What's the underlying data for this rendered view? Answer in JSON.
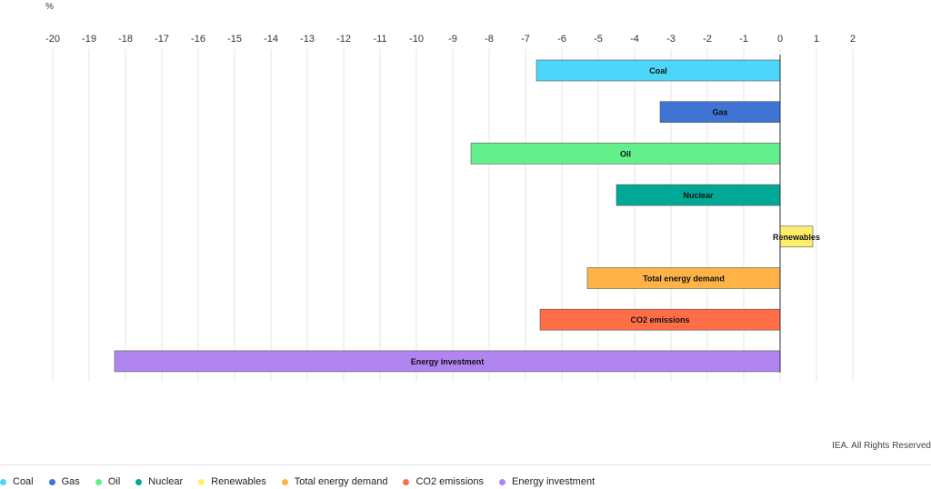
{
  "chart_data": {
    "type": "bar",
    "orientation": "horizontal",
    "unit_label": "%",
    "xlim": [
      -20,
      2
    ],
    "x_ticks": [
      "-20",
      "-19",
      "-18",
      "-17",
      "-16",
      "-15",
      "-14",
      "-13",
      "-12",
      "-11",
      "-10",
      "-9",
      "-8",
      "-7",
      "-6",
      "-5",
      "-4",
      "-3",
      "-2",
      "-1",
      "0",
      "1",
      "2"
    ],
    "grid": true,
    "legend_position": "bottom",
    "categories": [
      "Coal",
      "Gas",
      "Oil",
      "Nuclear",
      "Renewables",
      "Total energy demand",
      "CO2 emissions",
      "Energy investment"
    ],
    "values": [
      -6.7,
      -3.3,
      -8.5,
      -4.5,
      0.9,
      -5.3,
      -6.6,
      -18.3
    ],
    "colors": [
      "#4dd5fa",
      "#3f73d4",
      "#63f08c",
      "#00a896",
      "#ffee6a",
      "#ffb347",
      "#ff6e47",
      "#b085f0"
    ]
  },
  "credit": "IEA. All Rights Reserved",
  "legend": [
    {
      "label": "Coal",
      "color": "#4dd5fa"
    },
    {
      "label": "Gas",
      "color": "#3f73d4"
    },
    {
      "label": "Oil",
      "color": "#63f08c"
    },
    {
      "label": "Nuclear",
      "color": "#00a896"
    },
    {
      "label": "Renewables",
      "color": "#ffee6a"
    },
    {
      "label": "Total energy demand",
      "color": "#ffb347"
    },
    {
      "label": "CO2 emissions",
      "color": "#ff6e47"
    },
    {
      "label": "Energy investment",
      "color": "#b085f0"
    }
  ]
}
